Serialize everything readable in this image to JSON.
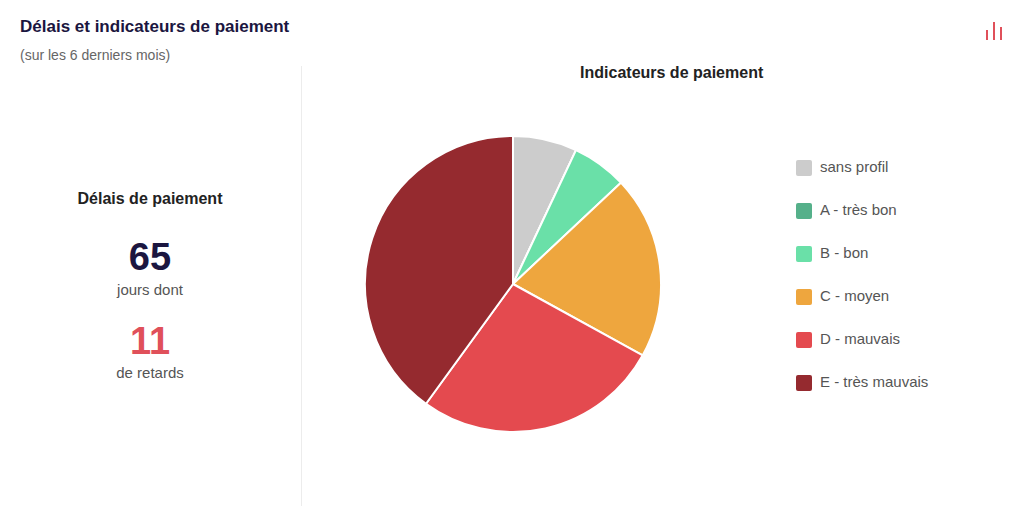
{
  "header": {
    "title": "Délais et indicateurs de paiement",
    "subtitle": "(sur les 6 derniers mois)"
  },
  "summary": {
    "title": "Délais de paiement",
    "days": 65,
    "days_label": "jours dont",
    "late_days": 11,
    "late_label": "de retards"
  },
  "chart_data": {
    "type": "pie",
    "title": "Indicateurs de paiement",
    "categories": [
      "sans profil",
      "A - très bon",
      "B - bon",
      "C - moyen",
      "D - mauvais",
      "E - très mauvais"
    ],
    "values": [
      7,
      0,
      6,
      20,
      27,
      40
    ],
    "colors": [
      "#cccccc",
      "#55b08a",
      "#6ae0a8",
      "#eea63e",
      "#e44a4f",
      "#952a2f"
    ],
    "legend": "right",
    "data_labels": false
  }
}
